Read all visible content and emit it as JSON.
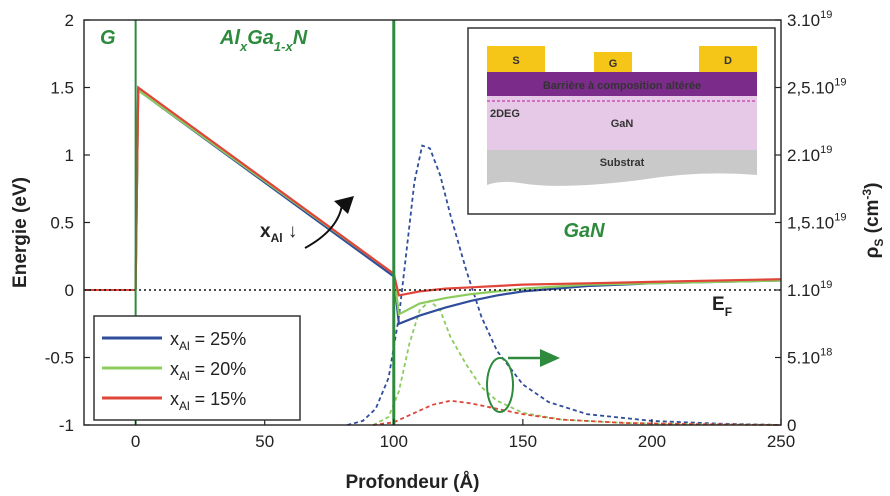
{
  "chart_data": {
    "type": "line",
    "xlabel": "Profondeur (Å)",
    "ylabel_left": "Energie (eV)",
    "ylabel_right": {
      "base": "ρ",
      "sub": "S",
      "unit_open": " (cm",
      "sup": "-3",
      "unit_close": ")"
    },
    "xlim": [
      -20,
      250
    ],
    "ylim_left": [
      -1,
      2
    ],
    "ylim_right": [
      0,
      3e+19
    ],
    "x_ticks": [
      0,
      50,
      100,
      150,
      200,
      250
    ],
    "y_ticks_left": [
      -1,
      -0.5,
      0,
      0.5,
      1,
      1.5,
      2
    ],
    "y_ticks_right": [
      {
        "value": 0,
        "mant": "0",
        "exp": ""
      },
      {
        "value": 5e+18,
        "mant": "5.10",
        "exp": "18"
      },
      {
        "value": 1e+19,
        "mant": "1.10",
        "exp": "19"
      },
      {
        "value": 1.5e+19,
        "mant": "1,5.10",
        "exp": "19"
      },
      {
        "value": 2e+19,
        "mant": "2.10",
        "exp": "19"
      },
      {
        "value": 2.5e+19,
        "mant": "2,5.10",
        "exp": "19"
      },
      {
        "value": 3e+19,
        "mant": "3.10",
        "exp": "19"
      }
    ],
    "region_labels": {
      "gate": "G",
      "barrier": {
        "a": "Al",
        "x": "x",
        "b": "Ga",
        "sub": "1-x",
        "c": "N"
      },
      "channel": "GaN"
    },
    "fermi_label": {
      "base": "E",
      "sub": "F"
    },
    "arrow_label": {
      "base": "x",
      "sub": "Al",
      "arrow": " ↓"
    },
    "gate_line": {
      "x": [
        -20,
        0
      ],
      "y": [
        0,
        0
      ]
    },
    "series": [
      {
        "name": "x_Al = 25%",
        "legend": {
          "x": "x",
          "sub": "Al",
          "value": " = 25%"
        },
        "color": "#2f4d9a",
        "energy": {
          "x": [
            0,
            1,
            100,
            102,
            110,
            120,
            130,
            140,
            150,
            175,
            200,
            250
          ],
          "y": [
            0,
            1.48,
            0.1,
            -0.25,
            -0.19,
            -0.13,
            -0.08,
            -0.04,
            -0.01,
            0.03,
            0.05,
            0.07
          ]
        },
        "density": {
          "x": [
            82,
            88,
            93,
            98,
            102,
            105,
            108,
            111,
            114,
            118,
            122,
            128,
            134,
            140,
            150,
            160,
            175,
            200,
            225,
            250
          ],
          "y": [
            0,
            3e+17,
            1.2e+18,
            3.5e+18,
            8e+18,
            1.3e+19,
            1.8e+19,
            2.07e+19,
            2.05e+19,
            1.85e+19,
            1.55e+19,
            1.15e+19,
            8e+18,
            5.5e+18,
            3e+18,
            1.7e+18,
            8e+17,
            3e+17,
            1e+17,
            0
          ]
        }
      },
      {
        "name": "x_Al = 20%",
        "legend": {
          "x": "x",
          "sub": "Al",
          "value": " = 20%"
        },
        "color": "#8ccc5e",
        "energy": {
          "x": [
            0,
            1,
            100,
            102,
            110,
            120,
            130,
            140,
            150,
            175,
            200,
            250
          ],
          "y": [
            0,
            1.48,
            0.12,
            -0.18,
            -0.1,
            -0.06,
            -0.03,
            -0.01,
            0.01,
            0.04,
            0.05,
            0.07
          ]
        },
        "density": {
          "x": [
            92,
            98,
            102,
            106,
            110,
            114,
            118,
            122,
            128,
            134,
            140,
            150,
            165,
            190,
            220,
            250
          ],
          "y": [
            0,
            6e+17,
            2.5e+18,
            6e+18,
            8.5e+18,
            9.2e+18,
            8.5e+18,
            6.5e+18,
            4.5e+18,
            2.8e+18,
            1.8e+18,
            9e+17,
            4e+17,
            1.5e+17,
            5e+16,
            0
          ]
        }
      },
      {
        "name": "x_Al = 15%",
        "legend": {
          "x": "x",
          "sub": "Al",
          "value": " = 15%"
        },
        "color": "#e0453a",
        "energy": {
          "x": [
            0,
            1,
            100,
            102,
            110,
            120,
            130,
            140,
            150,
            175,
            200,
            250
          ],
          "y": [
            0,
            1.5,
            0.12,
            -0.04,
            -0.01,
            0.01,
            0.02,
            0.03,
            0.04,
            0.05,
            0.06,
            0.08
          ]
        },
        "density": {
          "x": [
            92,
            100,
            108,
            115,
            122,
            130,
            140,
            150,
            165,
            190,
            220,
            250
          ],
          "y": [
            0,
            2e+17,
            9e+17,
            1.5e+18,
            1.8e+18,
            1.6e+18,
            1.2e+18,
            8e+17,
            4e+17,
            1.5e+17,
            5e+16,
            0
          ]
        }
      }
    ],
    "inset": {
      "source": "S",
      "gate": "G",
      "drain": "D",
      "barrier": "Barrière à composition altérée",
      "twodeg": "2DEG",
      "gan": "GaN",
      "substrate": "Substrat"
    }
  },
  "colors": {
    "region_green": "#2e8b3e",
    "axis": "#222222",
    "contact_yellow": "#f5c518",
    "barrier_purple": "#7b2b8a",
    "gan_lavender": "#e6c9e6",
    "substrate_gray": "#c9c9c9"
  }
}
